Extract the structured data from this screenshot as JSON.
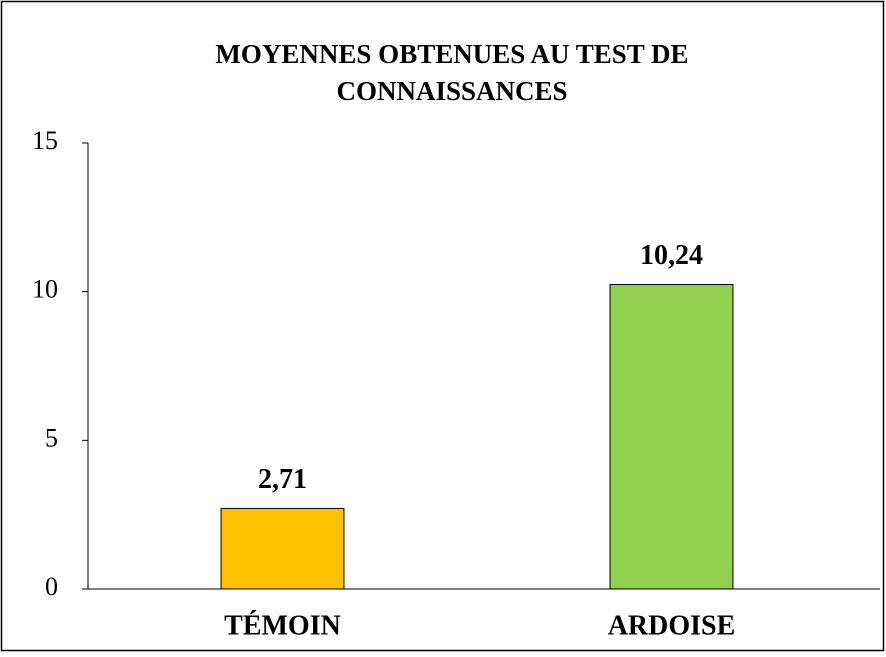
{
  "chart_data": {
    "type": "bar",
    "title": [
      "MOYENNES OBTENUES AU TEST DE",
      "CONNAISSANCES"
    ],
    "categories": [
      "TÉMOIN",
      "ARDOISE"
    ],
    "values": [
      2.71,
      10.24
    ],
    "value_labels": [
      "2,71",
      "10,24"
    ],
    "colors": [
      "#FFC000",
      "#92D050"
    ],
    "ylim": [
      0,
      15
    ],
    "yticks": [
      0,
      5,
      10,
      15
    ],
    "grid": false
  }
}
